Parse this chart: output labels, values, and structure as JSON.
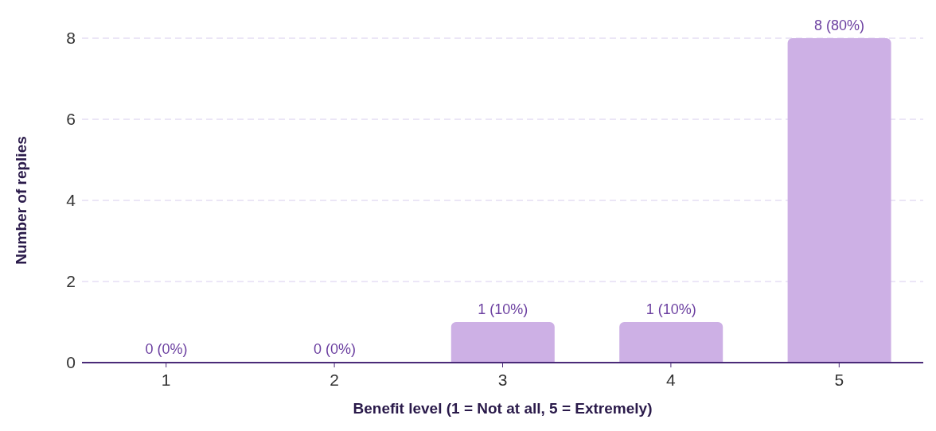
{
  "chart_data": {
    "type": "bar",
    "xlabel": "Benefit level (1 = Not at all, 5 = Extremely)",
    "ylabel": "Number of replies",
    "categories": [
      "1",
      "2",
      "3",
      "4",
      "5"
    ],
    "values": [
      0,
      0,
      1,
      1,
      8
    ],
    "value_labels": [
      "0 (0%)",
      "0 (0%)",
      "1 (10%)",
      "1 (10%)",
      "8 (80%)"
    ],
    "color": "#cdb0e5",
    "ylim": [
      0,
      8
    ],
    "yticks": [
      0,
      2,
      4,
      6,
      8
    ],
    "grid": "y",
    "legend": false
  }
}
